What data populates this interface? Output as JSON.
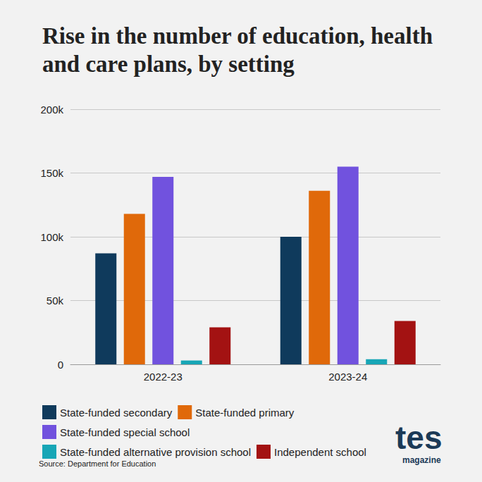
{
  "chart_data": {
    "type": "bar",
    "title": "Rise in the number of education, health and care plans, by setting",
    "categories": [
      "2022-23",
      "2023-24"
    ],
    "series": [
      {
        "name": "State-funded secondary",
        "color": "#0f3a5c",
        "values": [
          87000,
          100000
        ]
      },
      {
        "name": "State-funded primary",
        "color": "#e0690a",
        "values": [
          118000,
          136000
        ]
      },
      {
        "name": "State-funded special school",
        "color": "#7152de",
        "values": [
          147000,
          155000
        ]
      },
      {
        "name": "State-funded alternative provision school",
        "color": "#17a6b6",
        "values": [
          3000,
          4000
        ]
      },
      {
        "name": "Independent school",
        "color": "#a31212",
        "values": [
          29000,
          34000
        ]
      }
    ],
    "ylim": [
      0,
      200000
    ],
    "yticks": [
      0,
      {
        "value": 50000,
        "label": "50k"
      },
      {
        "value": 100000,
        "label": "100k"
      },
      {
        "value": 150000,
        "label": "150k"
      },
      {
        "value": 200000,
        "label": "200k"
      }
    ],
    "grid": true,
    "legend": "bottom",
    "annotations": [
      "Source: Department for Education",
      "tes",
      "magazine"
    ]
  }
}
